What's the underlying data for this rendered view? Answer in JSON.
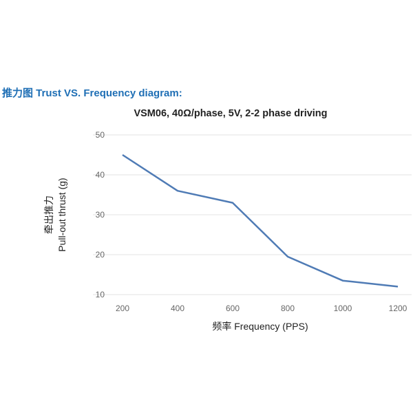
{
  "heading": "推力图  Trust VS. Frequency diagram:",
  "chart_data": {
    "type": "line",
    "title": "VSM06, 40Ω/phase, 5V, 2-2 phase driving",
    "xlabel": "频率 Frequency (PPS)",
    "ylabel_cn": "牵出推力",
    "ylabel": "Pull-out thrust (g)",
    "x": [
      200,
      400,
      600,
      800,
      1000,
      1200
    ],
    "values": [
      45,
      36,
      33,
      19.5,
      13.5,
      12
    ],
    "yticks": [
      10,
      20,
      30,
      40,
      50
    ],
    "ylim": [
      10,
      50
    ],
    "grid": true,
    "line_color": "#4f7bb5"
  }
}
